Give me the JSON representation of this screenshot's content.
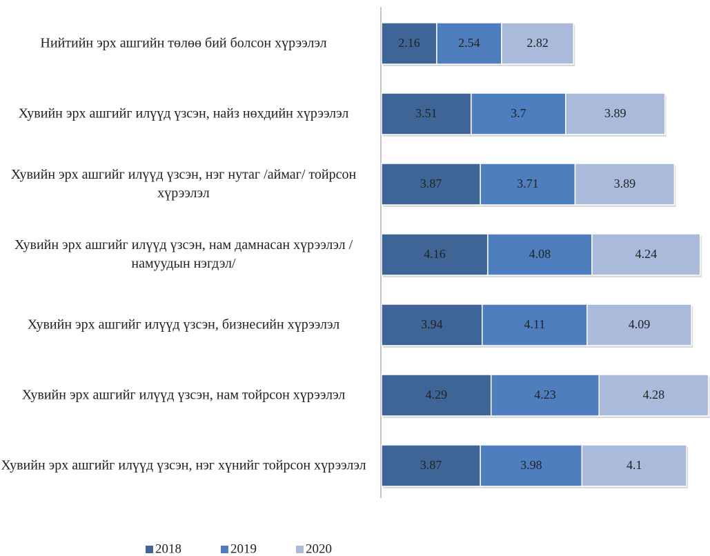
{
  "chart_data": {
    "type": "stacked_bar_horizontal",
    "categories": [
      "Нийтийн эрх ашгийн төлөө бий болсон хүрээлэл",
      "Хувийн эрх ашгийг илүүд үзсэн, найз нөхдийн хүрээлэл",
      "Хувийн эрх ашгийг илүүд үзсэн, нэг нутаг /аймаг/ тойрсон хүрээлэл",
      "Хувийн эрх ашгийг илүүд үзсэн, нам дамнасан хүрээлэл /намуудын нэгдэл/",
      "Хувийн эрх ашгийг илүүд үзсэн, бизнесийн хүрээлэл",
      "Хувийн эрх ашгийг илүүд үзсэн, нам тойрсон хүрээлэл",
      "Хувийн эрх ашгийг илүүд үзсэн, нэг хүнийг тойрсон хүрээлэл"
    ],
    "series": [
      {
        "name": "2018",
        "color": "#3f6596",
        "values": [
          2.16,
          3.51,
          3.87,
          4.16,
          3.94,
          4.29,
          3.87
        ]
      },
      {
        "name": "2019",
        "color": "#4e7ebe",
        "values": [
          2.54,
          3.7,
          3.71,
          4.08,
          4.11,
          4.23,
          3.98
        ]
      },
      {
        "name": "2020",
        "color": "#a9badb",
        "values": [
          2.82,
          3.89,
          3.89,
          4.24,
          4.09,
          4.28,
          4.1
        ]
      }
    ],
    "legend": "bottom"
  }
}
